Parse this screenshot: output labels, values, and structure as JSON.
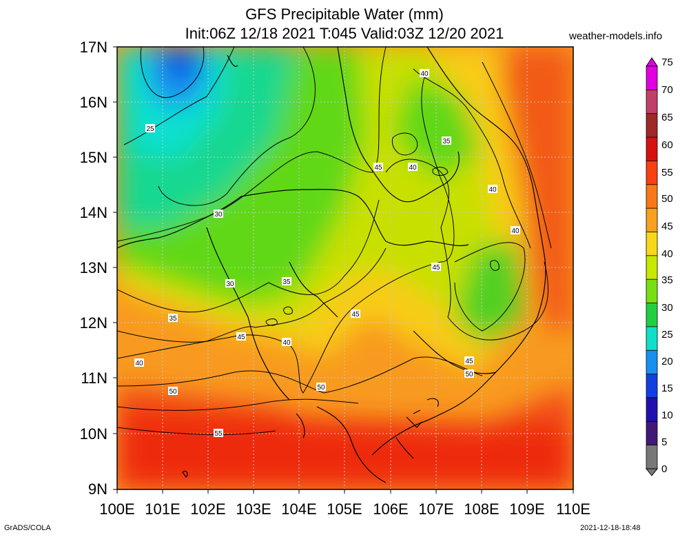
{
  "title_line1": "GFS Precipitable Water (mm)",
  "title_line2": "Init:06Z 12/18 2021 T:045 Valid:03Z 12/20 2021",
  "brand": "weather-models.info",
  "footer_left": "GrADS/COLA",
  "footer_right": "2021-12-18-18:48",
  "lat_labels": [
    "17N",
    "16N",
    "15N",
    "14N",
    "13N",
    "12N",
    "11N",
    "10N",
    "9N"
  ],
  "lon_labels": [
    "100E",
    "101E",
    "102E",
    "103E",
    "104E",
    "105E",
    "106E",
    "107E",
    "108E",
    "109E",
    "110E"
  ],
  "colorbar": {
    "labels": [
      "75",
      "70",
      "65",
      "60",
      "55",
      "50",
      "45",
      "40",
      "35",
      "30",
      "25",
      "20",
      "15",
      "10",
      "5",
      "0"
    ],
    "colors": [
      "#e000e0",
      "#c0406a",
      "#a02828",
      "#d81010",
      "#f84010",
      "#f87818",
      "#f8a020",
      "#f8d818",
      "#c8e800",
      "#78e010",
      "#20d040",
      "#10e0c8",
      "#1890f0",
      "#1040e0",
      "#2010b0",
      "#401878",
      "#787878"
    ]
  },
  "contour_labels": [
    {
      "text": "25"
    },
    {
      "text": "30"
    },
    {
      "text": "30"
    },
    {
      "text": "35"
    },
    {
      "text": "35"
    },
    {
      "text": "40"
    },
    {
      "text": "40"
    },
    {
      "text": "40"
    },
    {
      "text": "40"
    },
    {
      "text": "40"
    },
    {
      "text": "40"
    },
    {
      "text": "45"
    },
    {
      "text": "45"
    },
    {
      "text": "45"
    },
    {
      "text": "45"
    },
    {
      "text": "45"
    },
    {
      "text": "35"
    },
    {
      "text": "50"
    },
    {
      "text": "50"
    },
    {
      "text": "50"
    },
    {
      "text": "55"
    }
  ],
  "colors": {
    "frame": "#000000",
    "grid": "#c8c8c8",
    "coast": "#000000",
    "contour": "#000000"
  }
}
